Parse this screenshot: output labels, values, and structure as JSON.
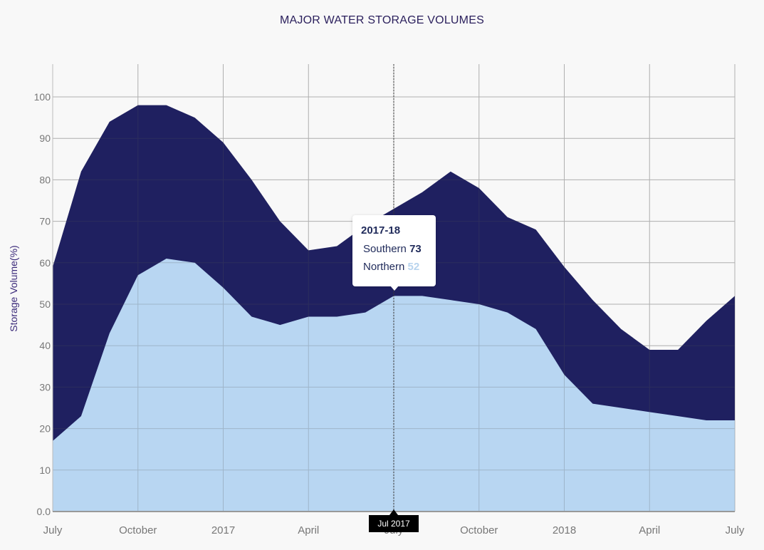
{
  "chart_data": {
    "type": "area",
    "stacked": false,
    "title": "MAJOR WATER STORAGE VOLUMES",
    "ylabel": "Storage Volume(%)",
    "xlabel": "",
    "ylim": [
      0,
      100
    ],
    "grid": true,
    "x_tick_labels": [
      "July",
      "October",
      "2017",
      "April",
      "July",
      "October",
      "2018",
      "April",
      "July"
    ],
    "y_tick_labels": [
      "0.0",
      "10",
      "20",
      "30",
      "40",
      "50",
      "60",
      "70",
      "80",
      "90",
      "100"
    ],
    "x": [
      "2016-07",
      "2016-08",
      "2016-09",
      "2016-10",
      "2016-11",
      "2016-12",
      "2017-01",
      "2017-02",
      "2017-03",
      "2017-04",
      "2017-05",
      "2017-06",
      "2017-07",
      "2017-08",
      "2017-09",
      "2017-10",
      "2017-11",
      "2017-12",
      "2018-01",
      "2018-02",
      "2018-03",
      "2018-04",
      "2018-05",
      "2018-06",
      "2018-07"
    ],
    "series": [
      {
        "name": "Southern",
        "color": "#1f2060",
        "values": [
          59,
          82,
          94,
          98,
          98,
          95,
          89,
          80,
          70,
          63,
          64,
          69,
          73,
          77,
          82,
          78,
          71,
          68,
          59,
          51,
          44,
          39,
          39,
          46,
          52
        ]
      },
      {
        "name": "Northern",
        "color": "#b8d6f2",
        "values": [
          17,
          23,
          43,
          57,
          61,
          60,
          54,
          47,
          45,
          47,
          47,
          48,
          52,
          52,
          51,
          50,
          48,
          44,
          33,
          26,
          25,
          24,
          23,
          22,
          22
        ]
      }
    ]
  },
  "tooltip": {
    "title": "2017-18",
    "rows": [
      {
        "label": "Southern",
        "value": "73"
      },
      {
        "label": "Northern",
        "value": "52"
      }
    ]
  },
  "crosshair": {
    "index": 12,
    "label": "Jul 2017"
  }
}
